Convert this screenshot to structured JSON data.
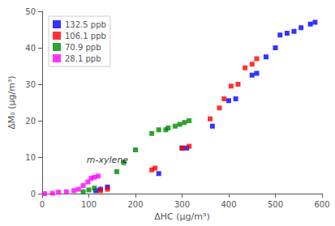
{
  "chart_data": {
    "type": "scatter",
    "xlabel": "ΔHC (μg/m³)",
    "ylabel": "ΔM₀ (μg/m³)",
    "xlim": [
      0,
      600
    ],
    "ylim": [
      0,
      50
    ],
    "xticks": [
      0,
      100,
      200,
      300,
      400,
      500,
      600
    ],
    "yticks": [
      0,
      10,
      20,
      30,
      40,
      50
    ],
    "grid": false,
    "legend": "upper left",
    "marker": "square",
    "series": [
      {
        "name": "132.5 ppb",
        "color": "#0000ff",
        "x": [
          115,
          125,
          140,
          250,
          300,
          310,
          365,
          400,
          415,
          450,
          460,
          480,
          500,
          510,
          525,
          540,
          555,
          575,
          585
        ],
        "values": [
          0.8,
          1.2,
          1.8,
          5.5,
          12.5,
          12.5,
          18.5,
          25.5,
          26.0,
          32.5,
          33.0,
          37.5,
          40.0,
          43.5,
          44.0,
          44.5,
          45.5,
          46.5,
          47.0
        ]
      },
      {
        "name": "106.1 ppb",
        "color": "#ff0000",
        "x": [
          125,
          140,
          235,
          242,
          300,
          315,
          360,
          380,
          390,
          405,
          420,
          435,
          450,
          460
        ],
        "values": [
          0.8,
          1.2,
          6.5,
          7.0,
          12.5,
          13.0,
          20.5,
          23.5,
          26.0,
          29.5,
          30.0,
          34.5,
          35.5,
          37.0
        ]
      },
      {
        "name": "70.9 ppb",
        "color": "#008800",
        "x": [
          88,
          100,
          112,
          160,
          175,
          200,
          235,
          250,
          265,
          270,
          285,
          295,
          305,
          315
        ],
        "values": [
          0.5,
          1.0,
          1.5,
          6.0,
          8.5,
          12.0,
          16.5,
          17.5,
          17.5,
          18.0,
          18.5,
          19.0,
          19.5,
          20.0
        ]
      },
      {
        "name": "28.1 ppb",
        "color": "#ff00ff",
        "x": [
          5,
          22,
          35,
          52,
          68,
          78,
          88,
          98,
          105,
          112,
          120
        ],
        "values": [
          0.0,
          0.1,
          0.4,
          0.5,
          0.8,
          1.2,
          2.2,
          3.2,
          4.2,
          4.5,
          4.8
        ]
      }
    ],
    "annotations": [
      {
        "text": "m-xylene",
        "x": 140,
        "y": 10.5
      }
    ]
  }
}
